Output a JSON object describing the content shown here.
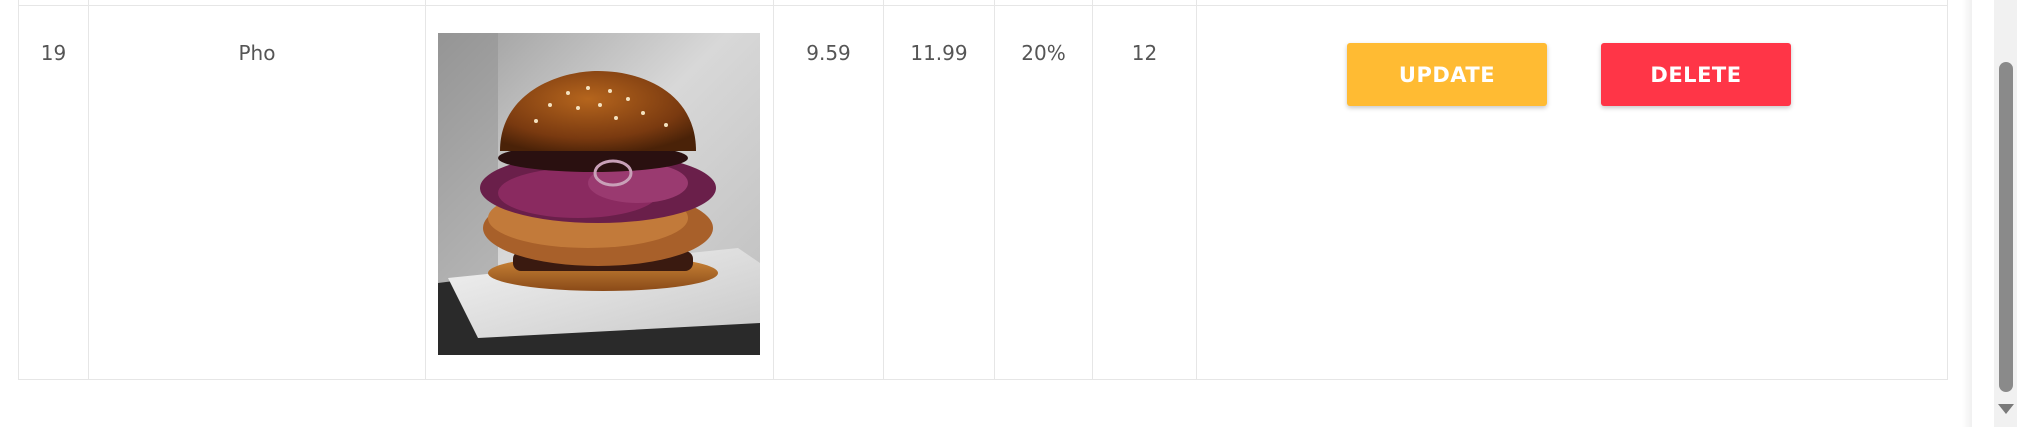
{
  "table": {
    "row": {
      "id": "19",
      "name": "Pho",
      "image_alt": "product-photo",
      "price": "9.59",
      "original_price": "11.99",
      "discount": "20%",
      "quantity": "12"
    },
    "actions": {
      "update_label": "UPDATE",
      "delete_label": "DELETE"
    }
  },
  "colors": {
    "update": "#ffbb33",
    "delete": "#ff3547"
  },
  "icons": {
    "scroll_down": "chevron-down-icon"
  }
}
